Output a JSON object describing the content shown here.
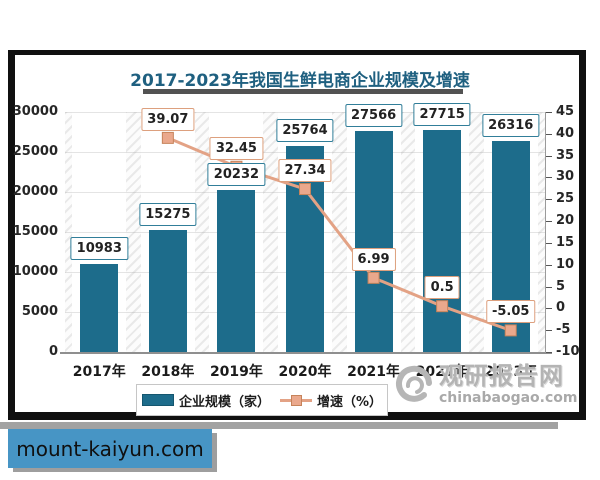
{
  "badge": {
    "text": "mount-kaiyun.com",
    "bg_color": "#4795c5"
  },
  "watermark": {
    "logo": "swirl-logo",
    "site_name": "观研报告网",
    "site_url": "chinabaogao.com"
  },
  "chart_data": {
    "type": "bar+line",
    "title": "2017-2023年我国生鲜电商企业规模及增速",
    "categories": [
      "2017年",
      "2018年",
      "2019年",
      "2020年",
      "2021年",
      "2022年",
      "2023年"
    ],
    "series": [
      {
        "name": "企业规模（家）",
        "type": "bar",
        "axis": "left",
        "color": "#1d6c8b",
        "values": [
          10983,
          15275,
          20232,
          25764,
          27566,
          27715,
          26316
        ],
        "labels": [
          "10983",
          "15275",
          "20232",
          "25764",
          "27566",
          "27715",
          "26316"
        ]
      },
      {
        "name": "增速（%）",
        "type": "line",
        "axis": "right",
        "color": "#e3a285",
        "marker": "square",
        "marker_fill": "#eaa88c",
        "marker_stroke": "#c6835a",
        "values": [
          null,
          39.07,
          32.45,
          27.34,
          6.99,
          0.5,
          -5.05
        ],
        "labels": [
          "",
          "39.07",
          "32.45",
          "27.34",
          "6.99",
          "0.5",
          "-5.05"
        ]
      }
    ],
    "left_axis": {
      "min": 0,
      "max": 30000,
      "step": 5000,
      "ticks": [
        "0",
        "5000",
        "10000",
        "15000",
        "20000",
        "25000",
        "30000"
      ]
    },
    "right_axis": {
      "min": -10,
      "max": 45,
      "step": 5,
      "ticks": [
        "-10",
        "-5",
        "0",
        "5",
        "10",
        "15",
        "20",
        "25",
        "30",
        "35",
        "40",
        "45"
      ]
    },
    "legend_position": "bottom",
    "grid": true,
    "plot_background": "diagonal-hatch"
  }
}
